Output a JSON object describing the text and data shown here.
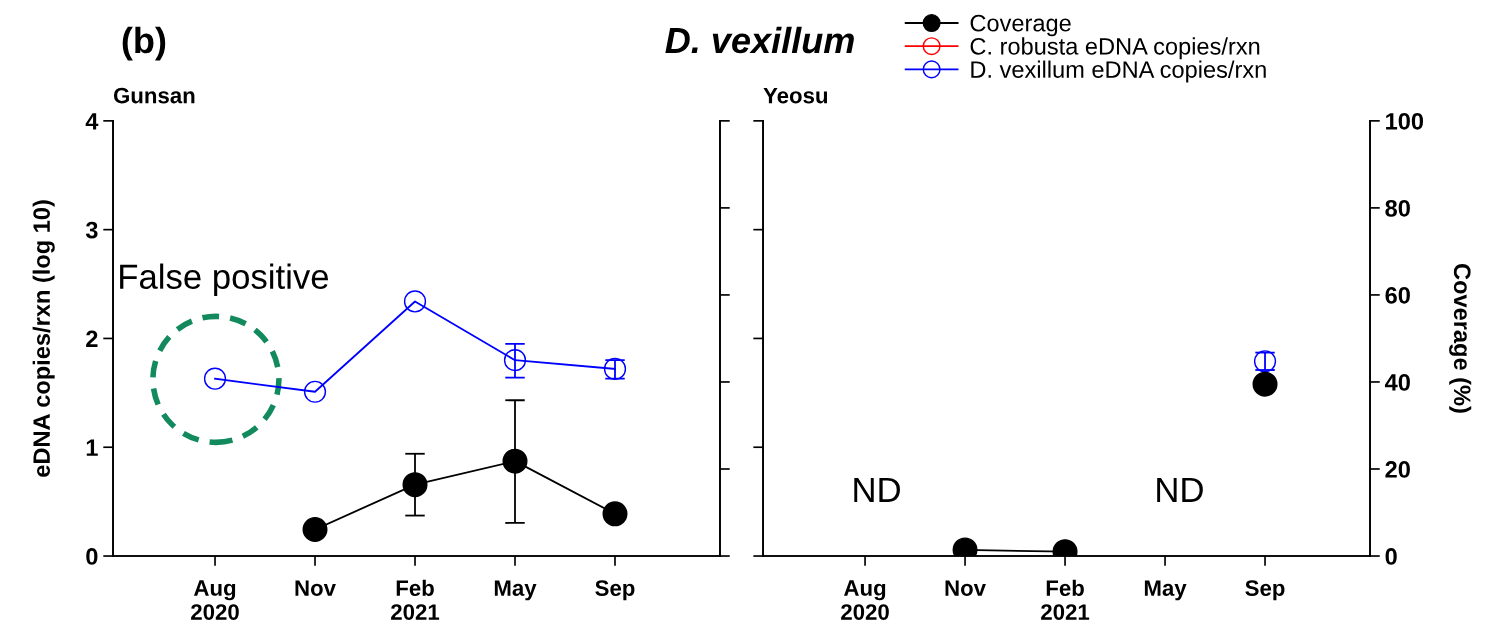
{
  "chart_data": {
    "type": "line",
    "title": "D. vexillum",
    "ylabel": "eDNA copies/rxn (log 10)",
    "y2label": "Coverage (%)",
    "annotations": [
      "(b)",
      "Gunsan",
      "Yeosu",
      "False positive",
      "ND",
      "ND"
    ],
    "categories": [
      "Aug\n2020",
      "Nov",
      "Feb\n2021",
      "May",
      "Sep",
      "Aug\n2020",
      "Nov",
      "Feb\n2021",
      "May",
      "Sep"
    ],
    "series": [
      {
        "name": "Coverage",
        "color": "#000000",
        "axis": "y2",
        "values": [
          null,
          6.1,
          16.4,
          21.8,
          9.7,
          null,
          1.4,
          1.0,
          null,
          39.5
        ],
        "errors": [
          null,
          null,
          [
            9.3,
            23.5
          ],
          [
            7.6,
            35.8
          ],
          null,
          null,
          null,
          null,
          null,
          null
        ]
      },
      {
        "name": "C. robusta eDNA copies/rxn",
        "color": "#ff0000",
        "values": [
          null,
          null,
          null,
          null,
          null,
          null,
          null,
          null,
          null,
          null
        ]
      },
      {
        "name": "D. vexillum eDNA copies/rxn",
        "color": "#0000ff",
        "values": [
          1.63,
          1.51,
          2.34,
          1.8,
          1.72,
          null,
          null,
          null,
          null,
          1.79
        ],
        "errors": [
          null,
          null,
          null,
          [
            1.64,
            1.95
          ],
          [
            1.63,
            1.8
          ],
          null,
          null,
          null,
          null,
          [
            1.71,
            1.87
          ]
        ]
      }
    ],
    "ylim": [
      0,
      4
    ],
    "yticks": [
      0,
      1,
      2,
      3,
      4
    ],
    "y2lim": [
      0,
      100
    ],
    "y2ticks": [
      0,
      20,
      40,
      60,
      80,
      100
    ],
    "marker": "circle",
    "line_style": "solid",
    "grid": false,
    "legend": "top right"
  }
}
